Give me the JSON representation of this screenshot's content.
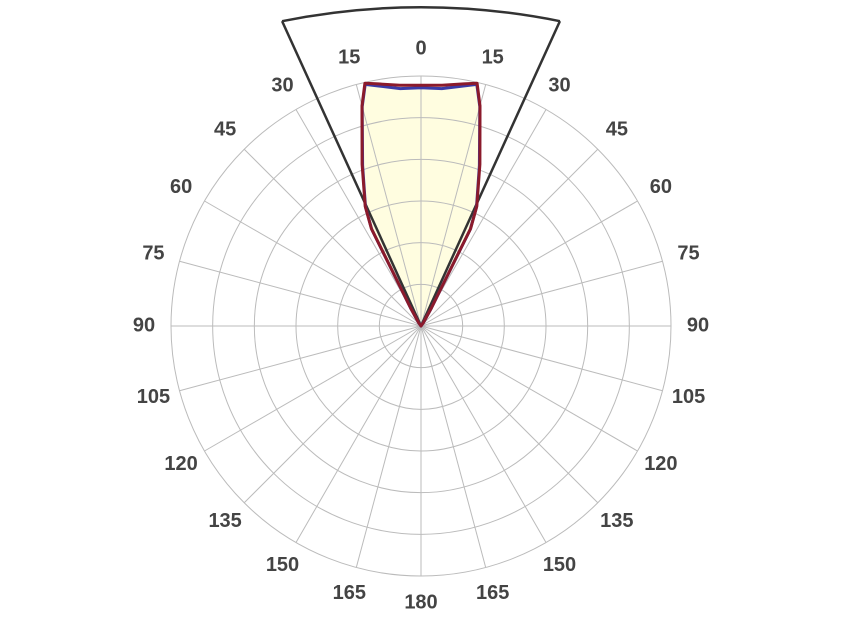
{
  "chart_data": {
    "type": "polar",
    "theta": [
      -180,
      -150,
      -120,
      -90,
      -60,
      -45,
      -40,
      -35,
      -30,
      -27,
      -25,
      -20,
      -15,
      -13,
      -10,
      -5,
      0,
      5,
      10,
      13,
      15,
      20,
      25,
      27,
      30,
      35,
      40,
      45,
      60,
      90,
      120,
      150,
      180
    ],
    "series": [
      {
        "color": "#3b3ba8",
        "values": [
          0,
          0,
          0,
          0,
          0,
          0,
          0,
          0.1,
          0.5,
          2.6,
          3.15,
          4.1,
          5.45,
          5.95,
          5.85,
          5.72,
          5.72,
          5.72,
          5.85,
          5.95,
          5.45,
          4.1,
          3.15,
          2.6,
          0.5,
          0.1,
          0,
          0,
          0,
          0,
          0,
          0,
          0
        ]
      },
      {
        "color": "#8b1a2b",
        "values": [
          0,
          0,
          0,
          0,
          0,
          0,
          0,
          0.1,
          0.5,
          2.63,
          3.17,
          4.13,
          5.47,
          5.98,
          5.9,
          5.8,
          5.78,
          5.8,
          5.9,
          5.98,
          5.47,
          4.13,
          3.17,
          2.63,
          0.5,
          0.1,
          0,
          0,
          0,
          0,
          0,
          0,
          0
        ]
      }
    ],
    "fill": "#fffde0",
    "rlim": [
      0,
      6
    ],
    "rticks": [
      1,
      2,
      3,
      4,
      5,
      6
    ],
    "beam_angles": [
      -24.5,
      24.5
    ],
    "thetaticks": [
      {
        "value": -165,
        "label": "165"
      },
      {
        "value": -150,
        "label": "150"
      },
      {
        "value": -135,
        "label": "135"
      },
      {
        "value": -120,
        "label": "120"
      },
      {
        "value": -105,
        "label": "105"
      },
      {
        "value": -90,
        "label": "90"
      },
      {
        "value": -75,
        "label": "75"
      },
      {
        "value": -60,
        "label": "60"
      },
      {
        "value": -45,
        "label": "45"
      },
      {
        "value": -30,
        "label": "30"
      },
      {
        "value": -15,
        "label": "15"
      },
      0,
      15,
      30,
      45,
      60,
      75,
      90,
      105,
      120,
      135,
      150,
      165,
      180
    ]
  }
}
